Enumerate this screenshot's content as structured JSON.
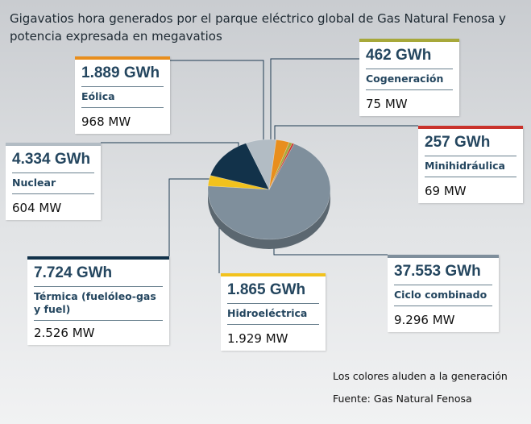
{
  "title": "Gigavatios hora generados por el parque eléctrico global de Gas Natural Fenosa y potencia expresada en megavatios",
  "chart_data": {
    "type": "pie",
    "unit": "GWh",
    "series": [
      {
        "label": "Ciclo combinado",
        "gwh_text": "37.553 GWh",
        "value": 37553,
        "mw": "9.296 MW",
        "color": "#7f8f9c"
      },
      {
        "label": "Hidroeléctrica",
        "gwh_text": "1.865 GWh",
        "value": 1865,
        "mw": "1.929 MW",
        "color": "#f2c21d"
      },
      {
        "label": "Térmica (fuelóleo-gas y fuel)",
        "gwh_text": "7.724 GWh",
        "value": 7724,
        "mw": "2.526 MW",
        "color": "#12324a"
      },
      {
        "label": "Nuclear",
        "gwh_text": "4.334 GWh",
        "value": 4334,
        "mw": "604 MW",
        "color": "#b2bcc4"
      },
      {
        "label": "Eólica",
        "gwh_text": "1.889 GWh",
        "value": 1889,
        "mw": "968 MW",
        "color": "#e88e1d"
      },
      {
        "label": "Cogeneración",
        "gwh_text": "462 GWh",
        "value": 462,
        "mw": "75 MW",
        "color": "#a7a83a"
      },
      {
        "label": "Minihidráulica",
        "gwh_text": "257 GWh",
        "value": 257,
        "mw": "69 MW",
        "color": "#c9322c"
      }
    ]
  },
  "notes": {
    "colors": "Los colores aluden a la generación",
    "source": "Fuente: Gas Natural Fenosa"
  }
}
